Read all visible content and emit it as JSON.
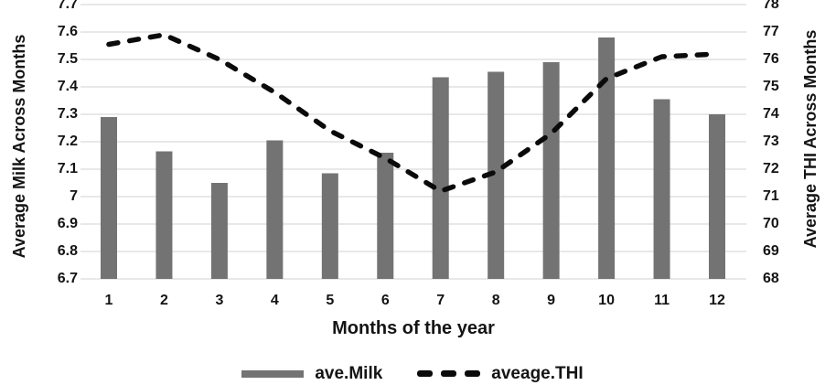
{
  "chart_data": {
    "type": "bar+line-combo",
    "title": "",
    "categories": [
      "1",
      "2",
      "3",
      "4",
      "5",
      "6",
      "7",
      "8",
      "9",
      "10",
      "11",
      "12"
    ],
    "series": [
      {
        "name": "ave.Milk",
        "type": "bar",
        "axis": "left",
        "values": [
          7.29,
          7.165,
          7.05,
          7.205,
          7.085,
          7.16,
          7.435,
          7.455,
          7.49,
          7.58,
          7.355,
          7.3
        ]
      },
      {
        "name": "aveage.THI",
        "type": "line",
        "dash": true,
        "axis": "right",
        "values": [
          76.55,
          76.9,
          76.0,
          74.8,
          73.4,
          72.4,
          71.2,
          71.9,
          73.3,
          75.3,
          76.1,
          76.2
        ]
      }
    ],
    "left_axis": {
      "title": "Average Milk Across Months",
      "min": 6.7,
      "max": 7.7,
      "step": 0.1,
      "ticks": [
        "7.7",
        "7.6",
        "7.5",
        "7.4",
        "7.3",
        "7.2",
        "7.1",
        "7",
        "6.9",
        "6.8",
        "6.7"
      ]
    },
    "right_axis": {
      "title": "Average THI Across Months",
      "min": 68,
      "max": 78,
      "step": 1,
      "ticks": [
        "78",
        "77",
        "76",
        "75",
        "74",
        "73",
        "72",
        "71",
        "70",
        "69",
        "68"
      ]
    },
    "x_axis": {
      "title": "Months of the year",
      "ticks": [
        "1",
        "2",
        "3",
        "4",
        "5",
        "6",
        "7",
        "8",
        "9",
        "10",
        "11",
        "12"
      ]
    },
    "legend": {
      "position": "bottom",
      "items": [
        {
          "label": "ave.Milk",
          "marker": "bar-swatch"
        },
        {
          "label": "aveage.THI",
          "marker": "dash-swatch"
        }
      ]
    },
    "grid": "horizontal-on",
    "colors": {
      "bar": "#737373",
      "line": "#0b0b0b",
      "gridline": "#d9d9d9",
      "text": "#141414",
      "background": "#ffffff"
    }
  }
}
